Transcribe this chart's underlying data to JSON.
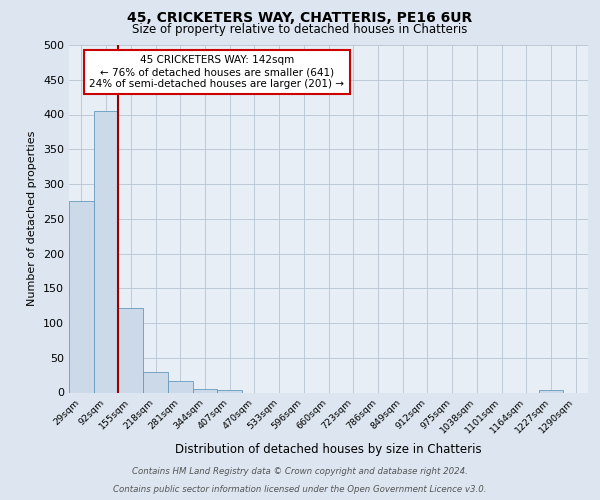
{
  "title1": "45, CRICKETERS WAY, CHATTERIS, PE16 6UR",
  "title2": "Size of property relative to detached houses in Chatteris",
  "xlabel": "Distribution of detached houses by size in Chatteris",
  "ylabel": "Number of detached properties",
  "bin_labels": [
    "29sqm",
    "92sqm",
    "155sqm",
    "218sqm",
    "281sqm",
    "344sqm",
    "407sqm",
    "470sqm",
    "533sqm",
    "596sqm",
    "660sqm",
    "723sqm",
    "786sqm",
    "849sqm",
    "912sqm",
    "975sqm",
    "1038sqm",
    "1101sqm",
    "1164sqm",
    "1227sqm",
    "1290sqm"
  ],
  "bar_values": [
    275,
    405,
    122,
    30,
    16,
    5,
    4,
    0,
    0,
    0,
    0,
    0,
    0,
    0,
    0,
    0,
    0,
    0,
    0,
    4,
    0
  ],
  "bar_color": "#ccd9e8",
  "bar_edge_color": "#6699bb",
  "bar_edge_width": 0.8,
  "red_line_color": "#990000",
  "red_line_x": 2,
  "annotation_text": "45 CRICKETERS WAY: 142sqm\n← 76% of detached houses are smaller (641)\n24% of semi-detached houses are larger (201) →",
  "annotation_box_color": "white",
  "annotation_box_edge_color": "#cc0000",
  "ylim": [
    0,
    500
  ],
  "yticks": [
    0,
    50,
    100,
    150,
    200,
    250,
    300,
    350,
    400,
    450,
    500
  ],
  "footnote1": "Contains HM Land Registry data © Crown copyright and database right 2024.",
  "footnote2": "Contains public sector information licensed under the Open Government Licence v3.0.",
  "bg_color": "#dde6f0",
  "plot_bg_color": "#e8eef6"
}
